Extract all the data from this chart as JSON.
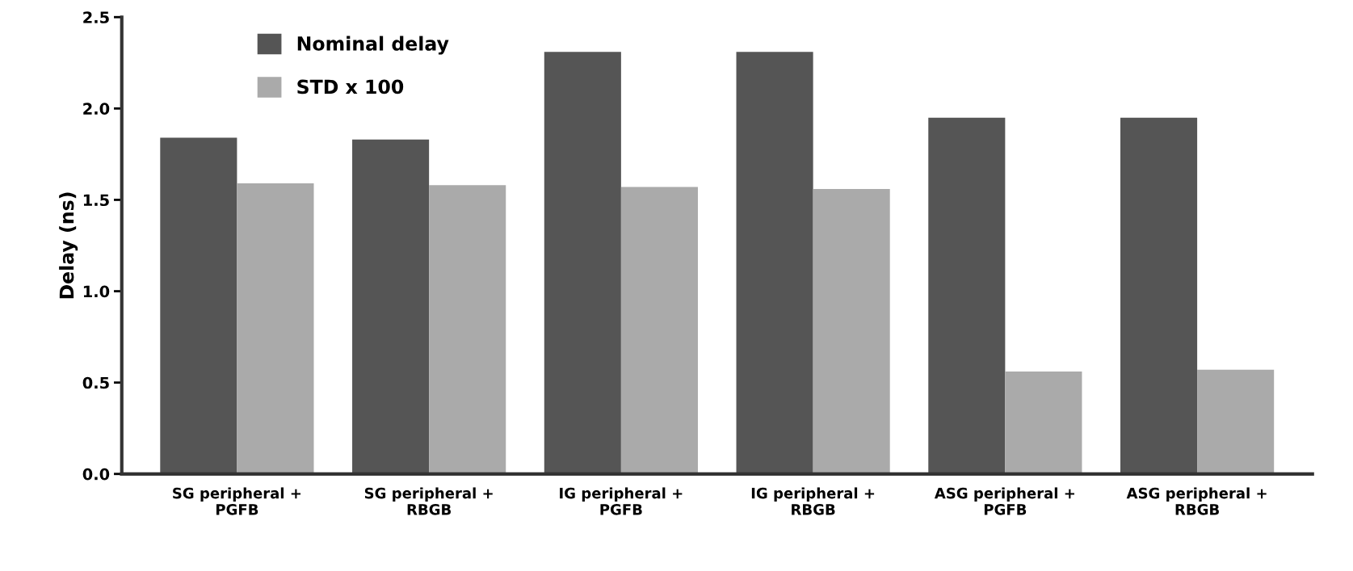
{
  "chart_data": {
    "type": "bar",
    "ylabel": "Delay (ns)",
    "categories": [
      "SG peripheral +\nPGFB",
      "SG peripheral +\nRBGB",
      "IG peripheral +\nPGFB",
      "IG peripheral +\nRBGB",
      "ASG peripheral +\nPGFB",
      "ASG peripheral +\nRBGB"
    ],
    "series": [
      {
        "name": "Nominal delay",
        "color": "#555555",
        "values": [
          1.84,
          1.83,
          2.31,
          2.31,
          1.95,
          1.95
        ]
      },
      {
        "name": "STD x 100",
        "color": "#aaaaaa",
        "values": [
          1.59,
          1.58,
          1.57,
          1.56,
          0.56,
          0.57
        ]
      }
    ],
    "ylim": [
      0,
      2.5
    ],
    "yticks": [
      {
        "value": 0,
        "label": "0.0"
      },
      0.5,
      {
        "value": 1,
        "label": "1.0"
      },
      1.5,
      {
        "value": 2,
        "label": "2.0"
      },
      2.5
    ],
    "grid": false,
    "legend": "top left"
  }
}
